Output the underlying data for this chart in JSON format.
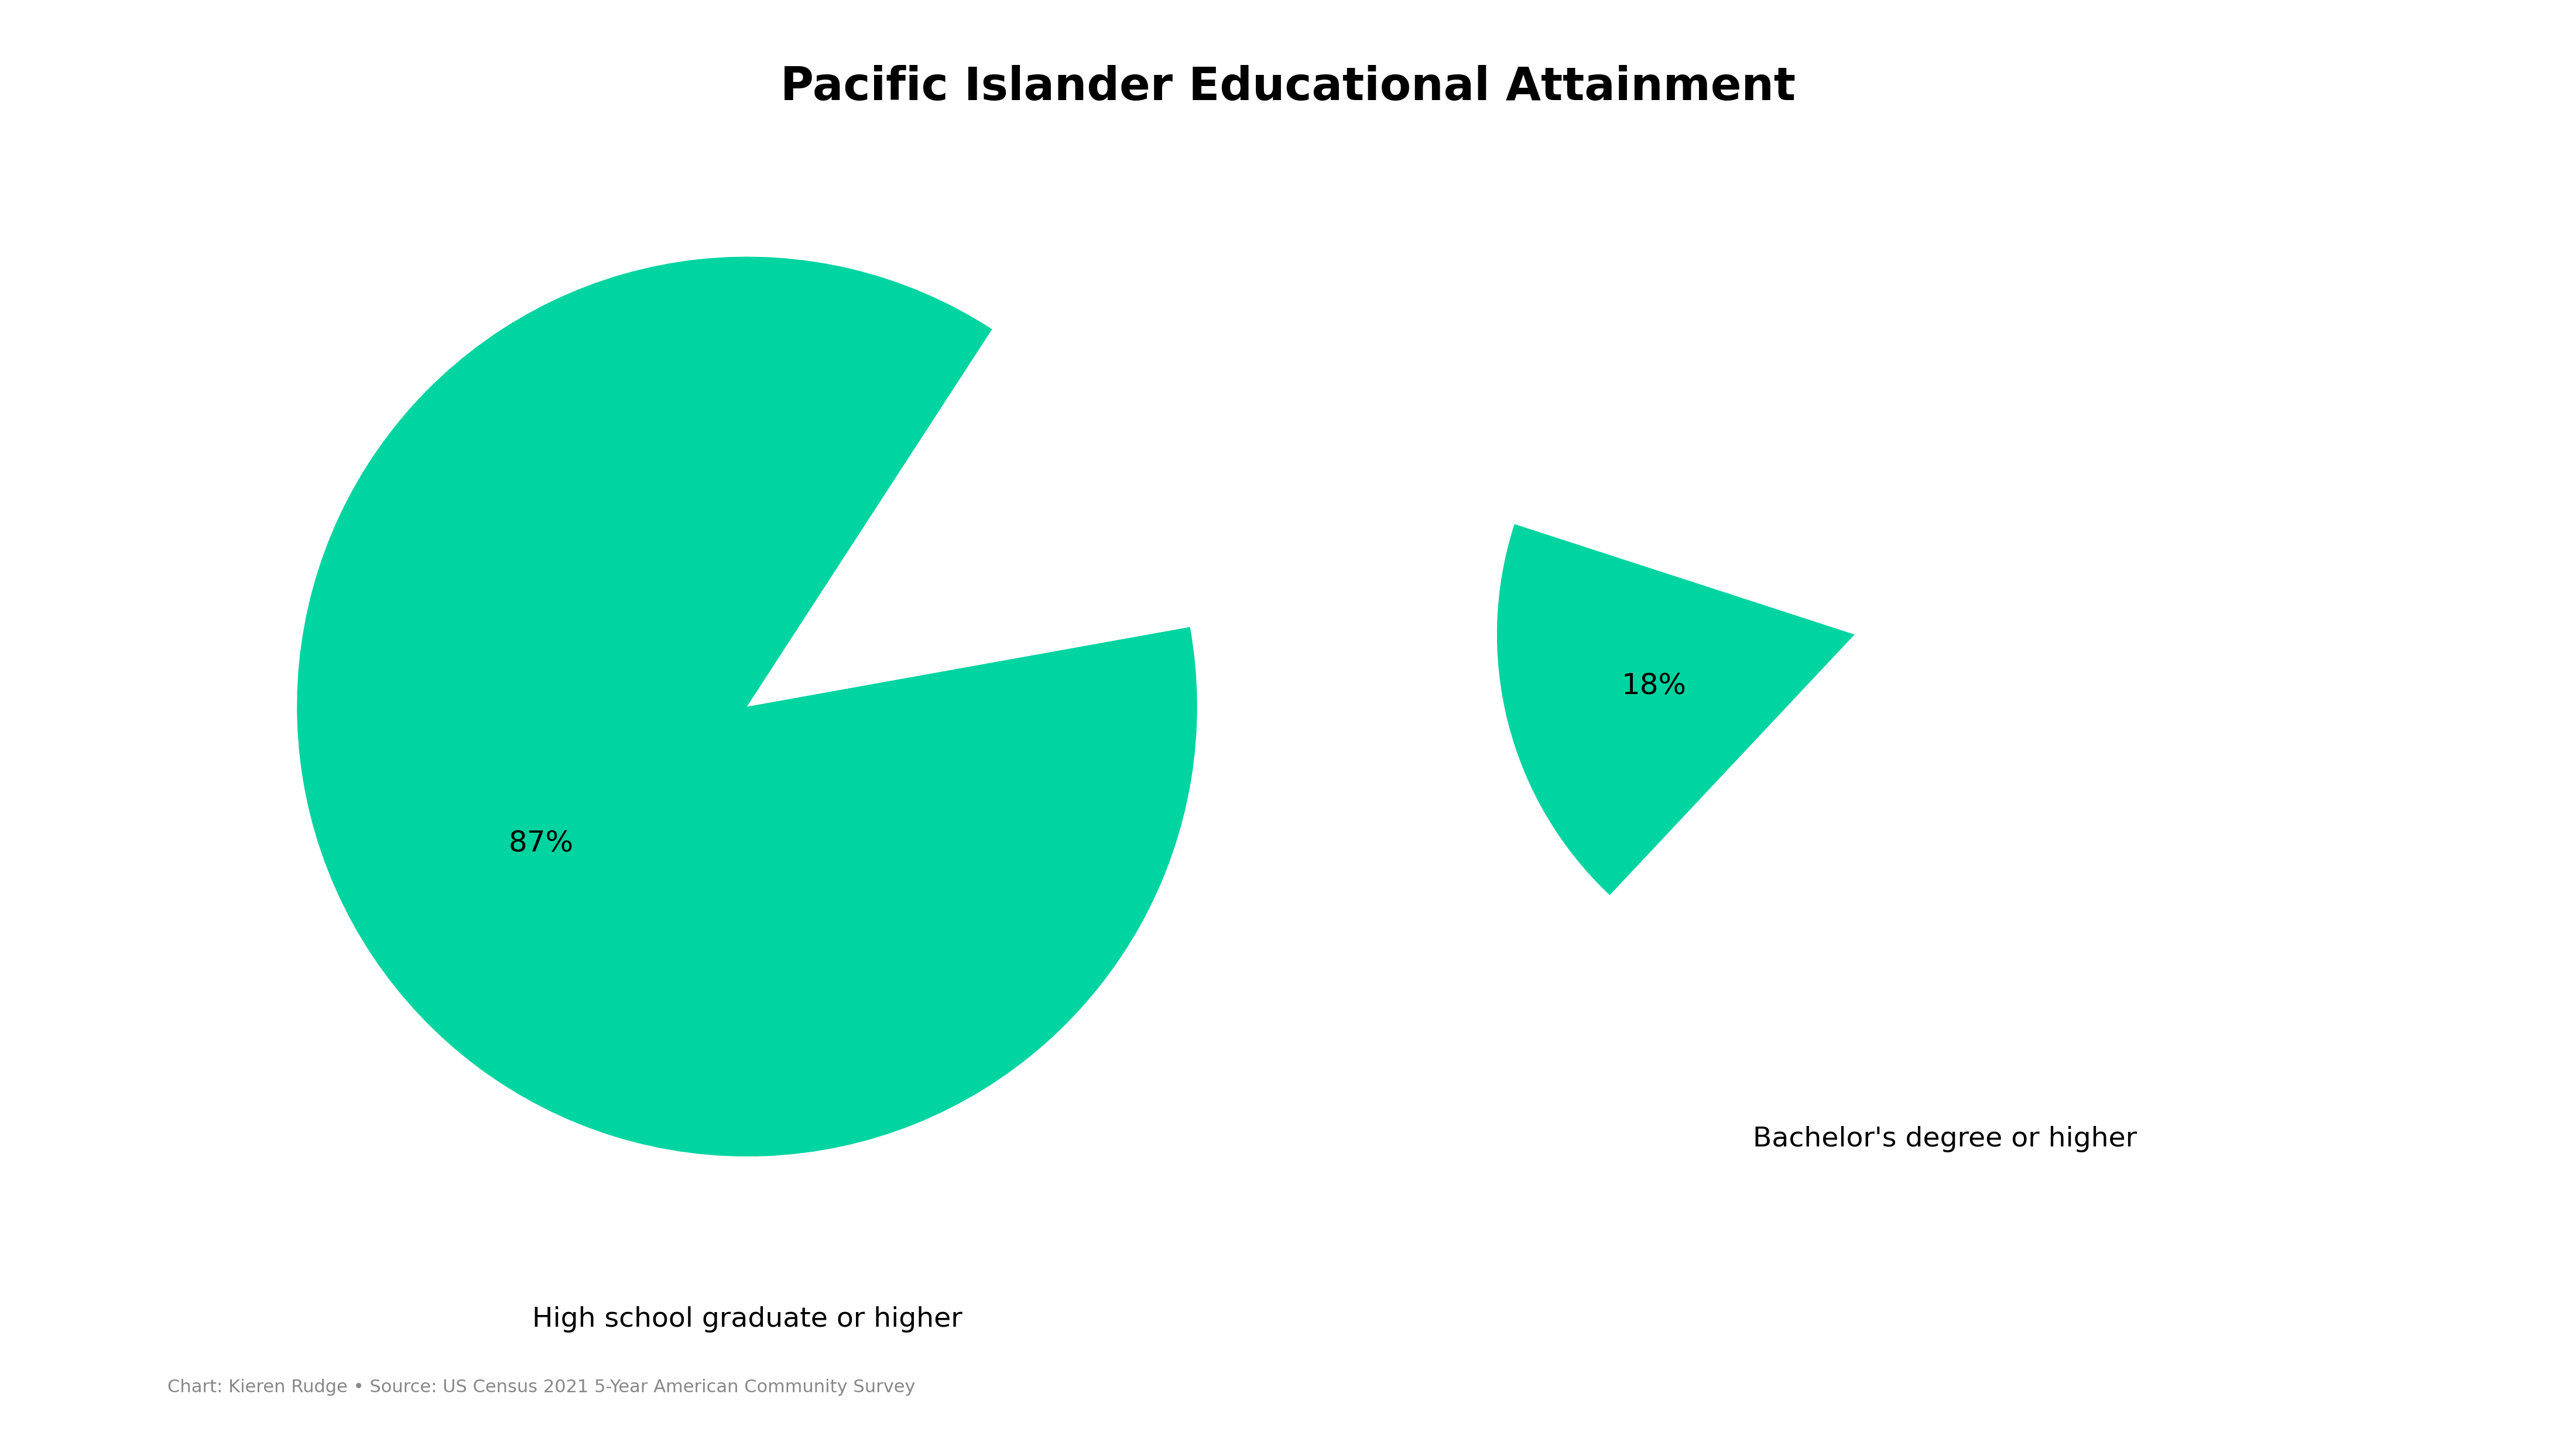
{
  "title": "Pacific Islander Educational Attainment",
  "title_fontsize": 56,
  "title_fontweight": "bold",
  "background_color": "#ffffff",
  "teal_color": "#00D4A0",
  "white_color": "#ffffff",
  "pie1_values": [
    87,
    13
  ],
  "pie1_label_pct": "87%",
  "pie1_xlabel": "High school graduate or higher",
  "pie2_values": [
    18,
    82
  ],
  "pie2_label_pct": "18%",
  "pie2_xlabel": "Bachelor's degree or higher",
  "label_fontsize": 34,
  "pct_fontsize": 36,
  "caption": "Chart: Kieren Rudge • Source: US Census 2021 5-Year American Community Survey",
  "caption_fontsize": 22,
  "caption_color": "#888888",
  "pie1_startangle": 57,
  "pie2_startangle": 162
}
